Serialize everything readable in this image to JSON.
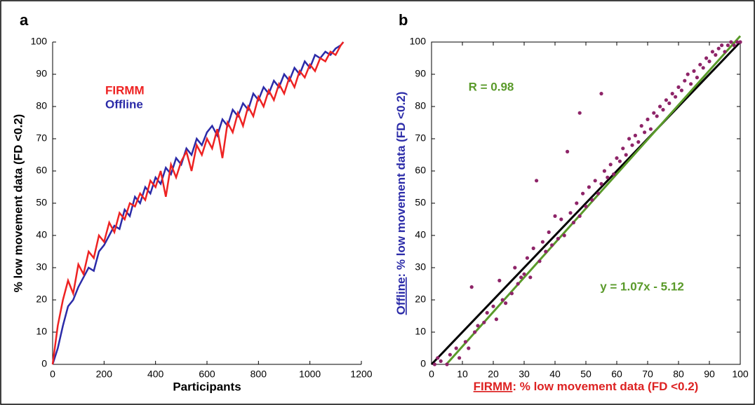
{
  "chart_data": [
    {
      "type": "line",
      "panel_label": "a",
      "xlabel": "Participants",
      "ylabel": "% low movement data (FD <0.2)",
      "legend": "upper left",
      "x": [
        0,
        20,
        40,
        60,
        80,
        100,
        120,
        140,
        160,
        180,
        200,
        220,
        240,
        260,
        280,
        300,
        320,
        340,
        360,
        380,
        400,
        420,
        440,
        460,
        480,
        500,
        520,
        540,
        560,
        580,
        600,
        620,
        640,
        660,
        680,
        700,
        720,
        740,
        760,
        780,
        800,
        820,
        840,
        860,
        880,
        900,
        920,
        940,
        960,
        980,
        1000,
        1020,
        1040,
        1060,
        1080,
        1100,
        1120,
        1130
      ],
      "series": [
        {
          "name": "Offline",
          "color": "#2b2ba8",
          "values": [
            0,
            5,
            12,
            18,
            20,
            24,
            27,
            30,
            29,
            35,
            37,
            40,
            43,
            42,
            48,
            46,
            52,
            50,
            55,
            53,
            58,
            56,
            61,
            59,
            64,
            62,
            67,
            65,
            70,
            68,
            72,
            74,
            71,
            76,
            74,
            79,
            77,
            81,
            79,
            84,
            82,
            86,
            84,
            88,
            86,
            90,
            88,
            92,
            90,
            94,
            92,
            96,
            95,
            97,
            96,
            98,
            99,
            100
          ]
        },
        {
          "name": "FIRMM",
          "color": "#ee2222",
          "values": [
            0,
            12,
            20,
            26,
            22,
            31,
            28,
            35,
            33,
            40,
            38,
            44,
            41,
            47,
            45,
            50,
            49,
            53,
            51,
            57,
            55,
            60,
            52,
            62,
            58,
            63,
            66,
            60,
            68,
            65,
            70,
            67,
            73,
            64,
            75,
            72,
            78,
            74,
            80,
            77,
            83,
            80,
            85,
            82,
            87,
            84,
            89,
            86,
            91,
            89,
            93,
            91,
            95,
            94,
            97,
            96,
            99,
            100
          ]
        }
      ],
      "xlim": [
        0,
        1200
      ],
      "xticks": [
        0,
        200,
        400,
        600,
        800,
        1000,
        1200
      ],
      "ylim": [
        0,
        100
      ],
      "yticks": [
        0,
        10,
        20,
        30,
        40,
        50,
        60,
        70,
        80,
        90,
        100
      ]
    },
    {
      "type": "scatter",
      "panel_label": "b",
      "xlabel_name": "FIRMM",
      "xlabel": ": % low movement data (FD <0.2)",
      "xlabel_color": "#dd2222",
      "ylabel_name": "Offline",
      "ylabel": ": % low movement data (FD <0.2)",
      "ylabel_color": "#2b2ba8",
      "color": "#8e2468",
      "x": [
        1,
        2,
        3,
        5,
        6,
        8,
        9,
        11,
        12,
        13,
        14,
        15,
        17,
        18,
        20,
        21,
        22,
        23,
        24,
        26,
        27,
        28,
        29,
        30,
        31,
        32,
        33,
        34,
        35,
        36,
        37,
        38,
        39,
        40,
        41,
        42,
        43,
        44,
        45,
        46,
        47,
        48,
        48,
        49,
        50,
        51,
        52,
        53,
        54,
        55,
        55,
        56,
        57,
        58,
        59,
        60,
        61,
        62,
        63,
        64,
        65,
        66,
        67,
        68,
        69,
        70,
        71,
        72,
        73,
        74,
        75,
        76,
        77,
        78,
        79,
        80,
        81,
        82,
        83,
        84,
        85,
        86,
        87,
        88,
        89,
        90,
        91,
        92,
        93,
        94,
        95,
        96,
        97,
        98,
        99,
        100
      ],
      "values": [
        0,
        2,
        1,
        0,
        3,
        5,
        2,
        7,
        5,
        24,
        10,
        12,
        13,
        16,
        18,
        14,
        26,
        20,
        19,
        22,
        30,
        25,
        27,
        28,
        33,
        27,
        36,
        57,
        32,
        38,
        35,
        41,
        37,
        46,
        39,
        45,
        40,
        66,
        47,
        44,
        50,
        78,
        46,
        53,
        49,
        55,
        51,
        57,
        53,
        84,
        56,
        60,
        58,
        62,
        59,
        64,
        63,
        67,
        65,
        70,
        68,
        71,
        69,
        74,
        72,
        76,
        73,
        78,
        77,
        80,
        79,
        82,
        81,
        84,
        83,
        86,
        85,
        88,
        90,
        87,
        91,
        89,
        93,
        92,
        95,
        94,
        97,
        96,
        98,
        99,
        97,
        99,
        100,
        99,
        100,
        100
      ],
      "reference_lines": [
        {
          "color": "#000000",
          "x": [
            0,
            100
          ],
          "y": [
            0,
            100
          ]
        },
        {
          "color": "#5a9a2a",
          "x": [
            4.8,
            100
          ],
          "y": [
            0,
            101.88
          ]
        }
      ],
      "annotations": [
        "R = 0.98",
        "y = 1.07x - 5.12"
      ],
      "annotation_color": "#5a9a2a",
      "xlim": [
        0,
        100
      ],
      "xticks": [
        0,
        10,
        20,
        30,
        40,
        50,
        60,
        70,
        80,
        90,
        100
      ],
      "ylim": [
        0,
        100
      ],
      "yticks": [
        0,
        10,
        20,
        30,
        40,
        50,
        60,
        70,
        80,
        90,
        100
      ],
      "box": true
    }
  ]
}
